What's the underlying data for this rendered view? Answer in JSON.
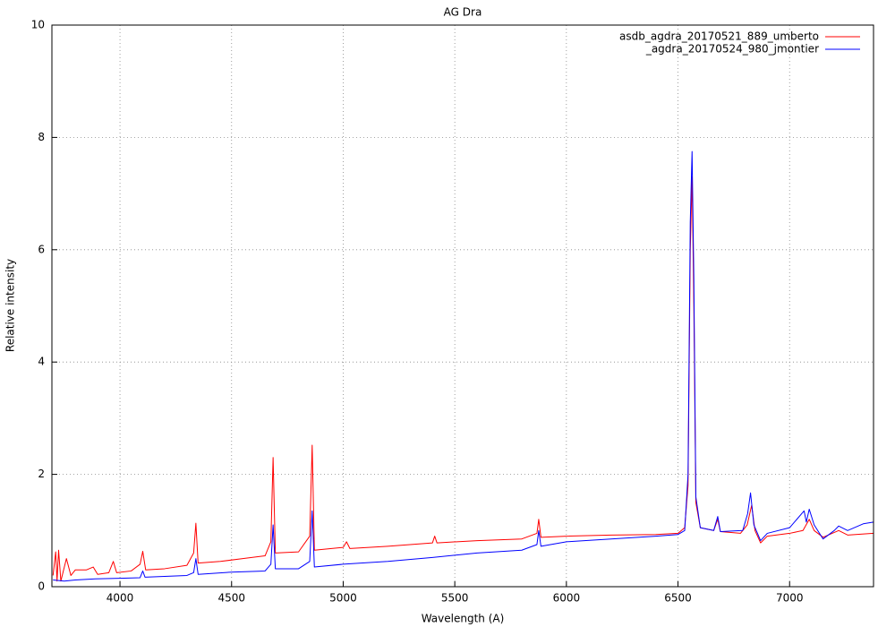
{
  "chart_data": {
    "type": "line",
    "title": "AG Dra",
    "x_label": "Wavelength (A)",
    "y_label": "Relative intensity",
    "xlim": [
      3695,
      7376
    ],
    "ylim": [
      0,
      10
    ],
    "xticks": [
      4000,
      4500,
      5000,
      5500,
      6000,
      6500,
      7000
    ],
    "yticks": [
      0,
      2,
      4,
      6,
      8,
      10
    ],
    "grid": true,
    "legend": "top-right",
    "series": [
      {
        "name": "asdb_agdra_20170521_889_umberto",
        "color": "#ff0000",
        "x": [
          3700,
          3712,
          3718,
          3725,
          3735,
          3760,
          3780,
          3800,
          3850,
          3880,
          3900,
          3950,
          3970,
          3985,
          4050,
          4090,
          4102,
          4115,
          4200,
          4300,
          4330,
          4340,
          4350,
          4450,
          4550,
          4650,
          4676,
          4686,
          4696,
          4800,
          4850,
          4861,
          4871,
          5000,
          5015,
          5030,
          5200,
          5400,
          5410,
          5420,
          5600,
          5800,
          5868,
          5876,
          5886,
          6000,
          6200,
          6400,
          6500,
          6530,
          6545,
          6555,
          6563,
          6571,
          6580,
          6600,
          6660,
          6678,
          6690,
          6780,
          6810,
          6830,
          6845,
          6870,
          6900,
          7000,
          7060,
          7088,
          7110,
          7150,
          7220,
          7260,
          7376
        ],
        "values": [
          0.2,
          0.62,
          0.1,
          0.65,
          0.1,
          0.5,
          0.2,
          0.3,
          0.3,
          0.35,
          0.22,
          0.25,
          0.45,
          0.25,
          0.28,
          0.4,
          0.63,
          0.3,
          0.32,
          0.38,
          0.6,
          1.13,
          0.42,
          0.45,
          0.5,
          0.55,
          0.8,
          2.3,
          0.6,
          0.62,
          0.9,
          2.52,
          0.65,
          0.7,
          0.8,
          0.68,
          0.72,
          0.78,
          0.9,
          0.78,
          0.82,
          0.85,
          0.95,
          1.2,
          0.88,
          0.9,
          0.92,
          0.93,
          0.95,
          1.05,
          1.8,
          6.0,
          7.3,
          5.0,
          1.5,
          1.05,
          1.0,
          1.2,
          0.98,
          0.95,
          1.1,
          1.45,
          1.0,
          0.78,
          0.9,
          0.95,
          1.0,
          1.2,
          1.0,
          0.88,
          1.0,
          0.92,
          0.95
        ]
      },
      {
        "name": "_agdra_20170524_980_jmontier",
        "color": "#0000ff",
        "x": [
          3700,
          3750,
          3800,
          3890,
          4000,
          4090,
          4102,
          4112,
          4300,
          4330,
          4340,
          4350,
          4500,
          4650,
          4676,
          4686,
          4696,
          4800,
          4850,
          4861,
          4871,
          5000,
          5200,
          5400,
          5600,
          5800,
          5868,
          5876,
          5886,
          6000,
          6200,
          6400,
          6500,
          6530,
          6545,
          6555,
          6563,
          6571,
          6580,
          6600,
          6660,
          6678,
          6690,
          6790,
          6812,
          6825,
          6840,
          6870,
          6900,
          7000,
          7065,
          7075,
          7088,
          7110,
          7150,
          7200,
          7220,
          7260,
          7330,
          7376
        ],
        "values": [
          0.12,
          0.1,
          0.12,
          0.14,
          0.15,
          0.16,
          0.28,
          0.17,
          0.2,
          0.25,
          0.5,
          0.22,
          0.26,
          0.28,
          0.4,
          1.1,
          0.32,
          0.32,
          0.45,
          1.35,
          0.35,
          0.4,
          0.45,
          0.52,
          0.6,
          0.65,
          0.75,
          1.0,
          0.72,
          0.8,
          0.85,
          0.9,
          0.93,
          1.0,
          2.0,
          6.5,
          7.75,
          5.5,
          1.6,
          1.05,
          1.0,
          1.25,
          0.98,
          1.0,
          1.3,
          1.67,
          1.1,
          0.82,
          0.95,
          1.05,
          1.35,
          1.15,
          1.38,
          1.1,
          0.85,
          1.0,
          1.08,
          1.0,
          1.12,
          1.15
        ]
      }
    ]
  }
}
